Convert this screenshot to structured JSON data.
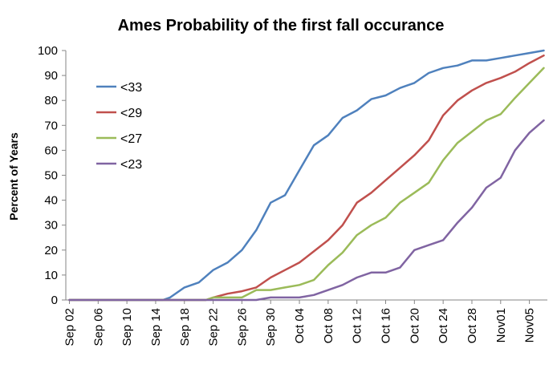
{
  "chart_data": {
    "type": "line",
    "title": "Ames Probability of the first fall occurance",
    "xlabel": "",
    "ylabel": "Percent of Years",
    "ylim": [
      0,
      100
    ],
    "yticks": [
      0,
      10,
      20,
      30,
      40,
      50,
      60,
      70,
      80,
      90,
      100
    ],
    "grid": false,
    "legend_position": "top-left-inside",
    "x": [
      "Sep 02",
      "Sep 03",
      "Sep 04",
      "Sep 05",
      "Sep 06",
      "Sep 07",
      "Sep 08",
      "Sep 09",
      "Sep 10",
      "Sep 11",
      "Sep 12",
      "Sep 13",
      "Sep 14",
      "Sep 15",
      "Sep 16",
      "Sep 17",
      "Sep 18",
      "Sep 19",
      "Sep 20",
      "Sep 21",
      "Sep 22",
      "Sep 23",
      "Sep 24",
      "Sep 25",
      "Sep 26",
      "Sep 27",
      "Sep 28",
      "Sep 29",
      "Sep 30",
      "Oct 01",
      "Oct 02",
      "Oct 03",
      "Oct 04",
      "Oct 05",
      "Oct 06",
      "Oct 07",
      "Oct 08",
      "Oct 09",
      "Oct 10",
      "Oct 11",
      "Oct 12",
      "Oct 13",
      "Oct 14",
      "Oct 15",
      "Oct 16",
      "Oct 17",
      "Oct 18",
      "Oct 19",
      "Oct 20",
      "Oct 21",
      "Oct 22",
      "Oct 23",
      "Oct 24",
      "Oct 25",
      "Oct 26",
      "Oct 27",
      "Oct 28",
      "Oct 29",
      "Oct 30",
      "Oct 31",
      "Nov01",
      "Nov02",
      "Nov03",
      "Nov04",
      "Nov05",
      "Nov06",
      "Nov07"
    ],
    "xtick_labels": [
      "Sep 02",
      "Sep 06",
      "Sep 10",
      "Sep 14",
      "Sep 18",
      "Sep 22",
      "Sep 26",
      "Sep 30",
      "Oct 04",
      "Oct 08",
      "Oct 12",
      "Oct 16",
      "Oct 20",
      "Oct 24",
      "Oct 28",
      "Nov01",
      "Nov05"
    ],
    "series": [
      {
        "name": "<33",
        "color": "#4f81bd",
        "points": [
          [
            13,
            0
          ],
          [
            14,
            1
          ],
          [
            16,
            5
          ],
          [
            18,
            7
          ],
          [
            20,
            12
          ],
          [
            22,
            15
          ],
          [
            24,
            20
          ],
          [
            26,
            28
          ],
          [
            28,
            39
          ],
          [
            30,
            42
          ],
          [
            32,
            52
          ],
          [
            34,
            62
          ],
          [
            36,
            66
          ],
          [
            38,
            73
          ],
          [
            40,
            76
          ],
          [
            42,
            80.5
          ],
          [
            44,
            82
          ],
          [
            46,
            85
          ],
          [
            48,
            87
          ],
          [
            50,
            91
          ],
          [
            52,
            93
          ],
          [
            54,
            94
          ],
          [
            56,
            96
          ],
          [
            58,
            96
          ],
          [
            60,
            97
          ],
          [
            62,
            98
          ],
          [
            64,
            99
          ],
          [
            66,
            100
          ]
        ]
      },
      {
        "name": "<29",
        "color": "#c0504d",
        "points": [
          [
            19,
            0
          ],
          [
            20,
            1
          ],
          [
            22,
            2.5
          ],
          [
            24,
            3.5
          ],
          [
            26,
            5
          ],
          [
            28,
            9
          ],
          [
            30,
            12
          ],
          [
            32,
            15
          ],
          [
            34,
            19.5
          ],
          [
            36,
            24
          ],
          [
            38,
            30
          ],
          [
            40,
            39
          ],
          [
            42,
            43
          ],
          [
            44,
            48
          ],
          [
            46,
            53
          ],
          [
            48,
            58
          ],
          [
            50,
            64
          ],
          [
            52,
            74
          ],
          [
            54,
            80
          ],
          [
            56,
            84
          ],
          [
            58,
            87
          ],
          [
            60,
            89
          ],
          [
            62,
            91.5
          ],
          [
            64,
            95
          ],
          [
            66,
            98
          ]
        ]
      },
      {
        "name": "<27",
        "color": "#9bbb59",
        "points": [
          [
            19,
            0
          ],
          [
            20,
            1
          ],
          [
            22,
            1
          ],
          [
            24,
            1
          ],
          [
            26,
            4
          ],
          [
            28,
            4
          ],
          [
            30,
            5
          ],
          [
            32,
            6
          ],
          [
            34,
            8
          ],
          [
            36,
            14
          ],
          [
            38,
            19
          ],
          [
            40,
            26
          ],
          [
            42,
            30
          ],
          [
            44,
            33
          ],
          [
            46,
            39
          ],
          [
            48,
            43
          ],
          [
            50,
            47
          ],
          [
            52,
            56
          ],
          [
            54,
            63
          ],
          [
            56,
            67.5
          ],
          [
            58,
            72
          ],
          [
            60,
            74.5
          ],
          [
            62,
            81
          ],
          [
            64,
            87
          ],
          [
            66,
            93
          ]
        ]
      },
      {
        "name": "<23",
        "color": "#8064a2",
        "points": [
          [
            26,
            0
          ],
          [
            28,
            1
          ],
          [
            30,
            1
          ],
          [
            32,
            1
          ],
          [
            34,
            2
          ],
          [
            36,
            4
          ],
          [
            38,
            6
          ],
          [
            40,
            9
          ],
          [
            42,
            11
          ],
          [
            44,
            11
          ],
          [
            46,
            13
          ],
          [
            48,
            20
          ],
          [
            50,
            22
          ],
          [
            52,
            24
          ],
          [
            54,
            31
          ],
          [
            56,
            37
          ],
          [
            58,
            45
          ],
          [
            60,
            49
          ],
          [
            62,
            60
          ],
          [
            64,
            67
          ],
          [
            66,
            72
          ]
        ]
      }
    ]
  }
}
